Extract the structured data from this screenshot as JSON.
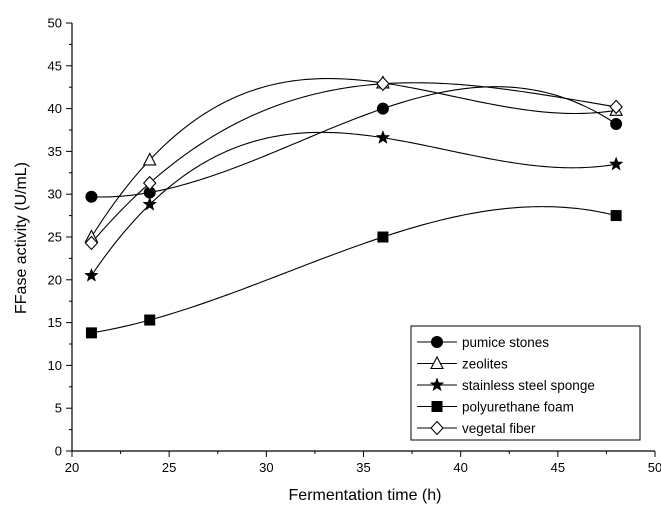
{
  "chart_data": {
    "type": "scatter",
    "title": "",
    "xlabel": "Fermentation time (h)",
    "ylabel": "FFase activity (U/mL)",
    "xlim": [
      20,
      50
    ],
    "ylim": [
      0,
      50
    ],
    "xticks": [
      20,
      25,
      30,
      35,
      40,
      45,
      50
    ],
    "yticks": [
      0,
      5,
      10,
      15,
      20,
      25,
      30,
      35,
      40,
      45,
      50
    ],
    "x": [
      21,
      24,
      36,
      48
    ],
    "grid": false,
    "legend_position": "bottom-right",
    "series": [
      {
        "name": "pumice stones",
        "marker": "circle-filled",
        "values": [
          29.7,
          30.2,
          40.0,
          38.2
        ]
      },
      {
        "name": "zeolites",
        "marker": "triangle-open",
        "values": [
          25.0,
          34.0,
          43.0,
          39.8
        ]
      },
      {
        "name": "stainless steel sponge",
        "marker": "star-filled",
        "values": [
          20.5,
          28.8,
          36.6,
          33.5
        ]
      },
      {
        "name": "polyurethane foam",
        "marker": "square-filled",
        "values": [
          13.8,
          15.3,
          25.0,
          27.5
        ]
      },
      {
        "name": "vegetal fiber",
        "marker": "diamond-open",
        "values": [
          24.3,
          31.3,
          42.9,
          40.2
        ]
      }
    ]
  }
}
